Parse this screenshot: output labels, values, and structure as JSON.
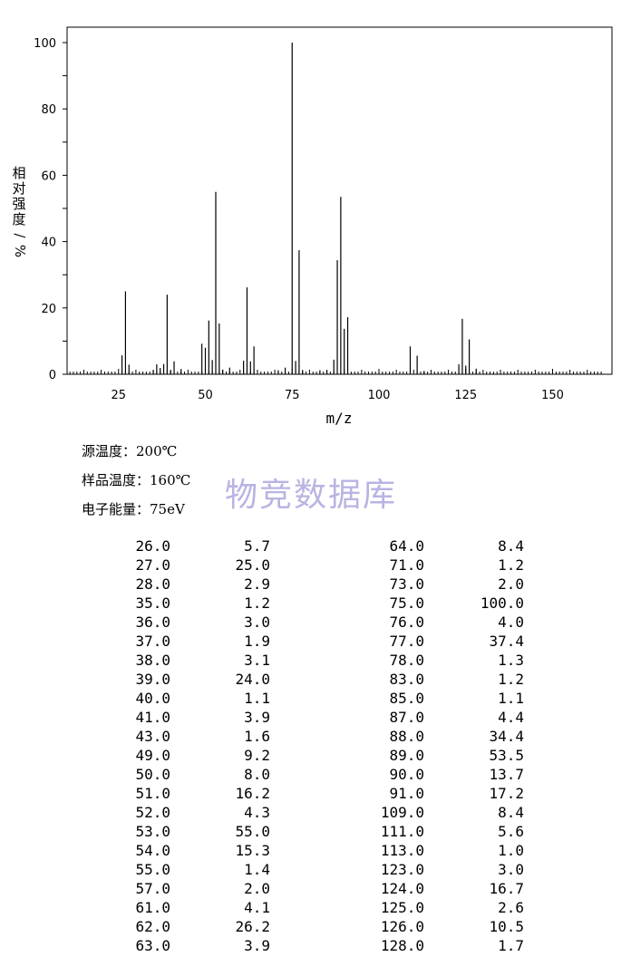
{
  "chart_data": {
    "type": "bar",
    "xlabel": "m/z",
    "ylabel": "相对强度/%",
    "xlim": [
      10,
      165
    ],
    "ylim": [
      0,
      105
    ],
    "x_ticks": [
      "25",
      "50",
      "75",
      "100",
      "125",
      "150"
    ],
    "y_ticks": [
      "0",
      "20",
      "40",
      "60",
      "80",
      "100"
    ],
    "grid": false,
    "x": [
      26.0,
      27.0,
      28.0,
      35.0,
      36.0,
      37.0,
      38.0,
      39.0,
      40.0,
      41.0,
      43.0,
      49.0,
      50.0,
      51.0,
      52.0,
      53.0,
      54.0,
      55.0,
      57.0,
      61.0,
      62.0,
      63.0,
      64.0,
      71.0,
      73.0,
      75.0,
      76.0,
      77.0,
      78.0,
      83.0,
      85.0,
      87.0,
      88.0,
      89.0,
      90.0,
      91.0,
      109.0,
      111.0,
      113.0,
      123.0,
      124.0,
      125.0,
      126.0,
      128.0
    ],
    "values": [
      5.7,
      25.0,
      2.9,
      1.2,
      3.0,
      1.9,
      3.1,
      24.0,
      1.1,
      3.9,
      1.6,
      9.2,
      8.0,
      16.2,
      4.3,
      55.0,
      15.3,
      1.4,
      2.0,
      4.1,
      26.2,
      3.9,
      8.4,
      1.2,
      2.0,
      100.0,
      4.0,
      37.4,
      1.3,
      1.2,
      1.1,
      4.4,
      34.4,
      53.5,
      13.7,
      17.2,
      8.4,
      5.6,
      1.0,
      3.0,
      16.7,
      2.6,
      10.5,
      1.7
    ]
  },
  "conditions": {
    "source_temp": "源温度：200℃",
    "sample_temp": "样品温度：160℃",
    "electron_energy": "电子能量：75eV"
  },
  "watermark": "物竞数据库",
  "table": {
    "left": [
      [
        "26.0",
        "5.7"
      ],
      [
        "27.0",
        "25.0"
      ],
      [
        "28.0",
        "2.9"
      ],
      [
        "35.0",
        "1.2"
      ],
      [
        "36.0",
        "3.0"
      ],
      [
        "37.0",
        "1.9"
      ],
      [
        "38.0",
        "3.1"
      ],
      [
        "39.0",
        "24.0"
      ],
      [
        "40.0",
        "1.1"
      ],
      [
        "41.0",
        "3.9"
      ],
      [
        "43.0",
        "1.6"
      ],
      [
        "49.0",
        "9.2"
      ],
      [
        "50.0",
        "8.0"
      ],
      [
        "51.0",
        "16.2"
      ],
      [
        "52.0",
        "4.3"
      ],
      [
        "53.0",
        "55.0"
      ],
      [
        "54.0",
        "15.3"
      ],
      [
        "55.0",
        "1.4"
      ],
      [
        "57.0",
        "2.0"
      ],
      [
        "61.0",
        "4.1"
      ],
      [
        "62.0",
        "26.2"
      ],
      [
        "63.0",
        "3.9"
      ]
    ],
    "right": [
      [
        "64.0",
        "8.4"
      ],
      [
        "71.0",
        "1.2"
      ],
      [
        "73.0",
        "2.0"
      ],
      [
        "75.0",
        "100.0"
      ],
      [
        "76.0",
        "4.0"
      ],
      [
        "77.0",
        "37.4"
      ],
      [
        "78.0",
        "1.3"
      ],
      [
        "83.0",
        "1.2"
      ],
      [
        "85.0",
        "1.1"
      ],
      [
        "87.0",
        "4.4"
      ],
      [
        "88.0",
        "34.4"
      ],
      [
        "89.0",
        "53.5"
      ],
      [
        "90.0",
        "13.7"
      ],
      [
        "91.0",
        "17.2"
      ],
      [
        "109.0",
        "8.4"
      ],
      [
        "111.0",
        "5.6"
      ],
      [
        "113.0",
        "1.0"
      ],
      [
        "123.0",
        "3.0"
      ],
      [
        "124.0",
        "16.7"
      ],
      [
        "125.0",
        "2.6"
      ],
      [
        "126.0",
        "10.5"
      ],
      [
        "128.0",
        "1.7"
      ]
    ]
  }
}
